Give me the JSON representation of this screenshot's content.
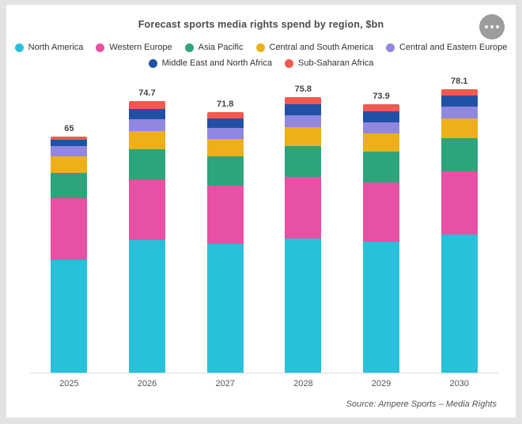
{
  "header": {
    "title": "Forecast sports media rights spend by region, $bn"
  },
  "menu": {
    "icon": "ellipsis-icon"
  },
  "chart_data": {
    "type": "bar",
    "stacked": true,
    "title": "Forecast sports media rights spend by region, $bn",
    "xlabel": "",
    "ylabel": "",
    "ylim": [
      0,
      80
    ],
    "grid": false,
    "legend_position": "top",
    "categories": [
      "2025",
      "2026",
      "2027",
      "2028",
      "2029",
      "2030"
    ],
    "series": [
      {
        "name": "North America",
        "color": "#29c0da",
        "values": [
          31.0,
          36.5,
          35.5,
          37.0,
          36.0,
          38.0
        ]
      },
      {
        "name": "Western Europe",
        "color": "#e750a5",
        "values": [
          17.0,
          16.5,
          16.0,
          17.0,
          16.5,
          17.5
        ]
      },
      {
        "name": "Asia Pacific",
        "color": "#2da57a",
        "values": [
          7.0,
          8.5,
          8.0,
          8.5,
          8.3,
          9.0
        ]
      },
      {
        "name": "Central and South America",
        "color": "#eeb019",
        "values": [
          4.5,
          5.0,
          4.8,
          5.2,
          5.0,
          5.5
        ]
      },
      {
        "name": "Central and Eastern Europe",
        "color": "#9088e0",
        "values": [
          2.8,
          3.2,
          3.0,
          3.2,
          3.2,
          3.3
        ]
      },
      {
        "name": "Middle East and North Africa",
        "color": "#2151a5",
        "values": [
          1.8,
          3.0,
          2.8,
          3.0,
          3.0,
          3.0
        ]
      },
      {
        "name": "Sub-Saharan Africa",
        "color": "#f3594f",
        "values": [
          0.9,
          2.0,
          1.7,
          1.9,
          1.9,
          1.8
        ]
      }
    ],
    "totals": [
      65,
      74.7,
      71.8,
      75.8,
      73.9,
      78.1
    ]
  },
  "footer": {
    "source": "Source:  Ampere Sports – Media Rights"
  }
}
